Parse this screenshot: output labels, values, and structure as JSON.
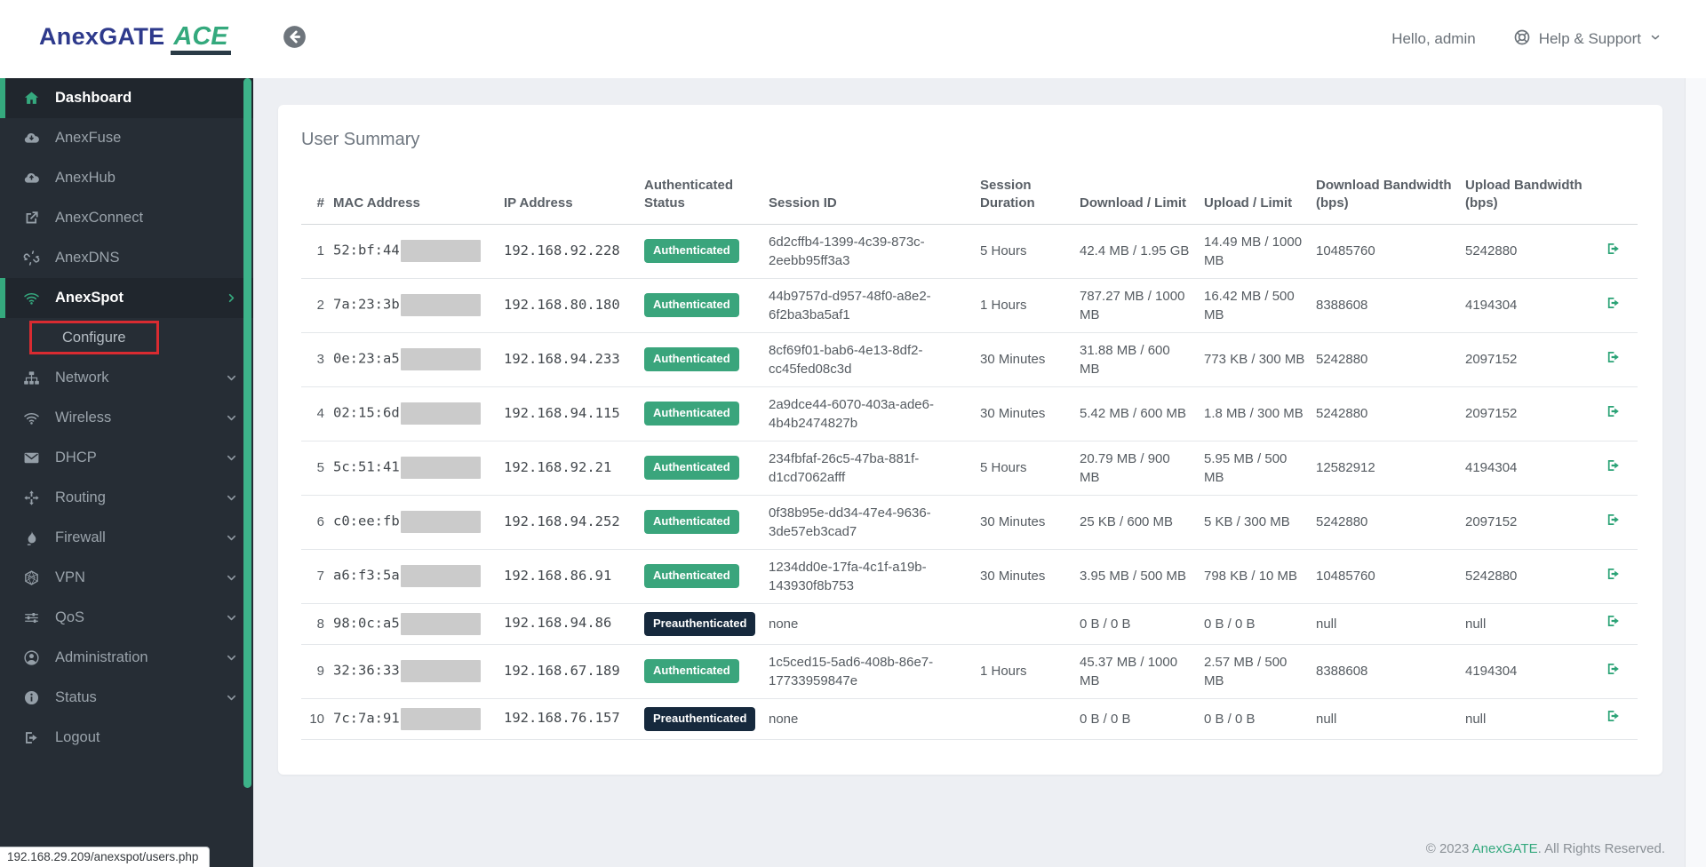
{
  "header": {
    "logo": {
      "brand": "AnexGATE",
      "product": "ACE"
    },
    "greeting": "Hello, admin",
    "help_label": "Help & Support"
  },
  "sidebar": {
    "items": [
      {
        "label": "Dashboard",
        "icon": "home",
        "active": true
      },
      {
        "label": "AnexFuse",
        "icon": "cloud-download"
      },
      {
        "label": "AnexHub",
        "icon": "cloud-upload"
      },
      {
        "label": "AnexConnect",
        "icon": "external-link"
      },
      {
        "label": "AnexDNS",
        "icon": "unlink"
      },
      {
        "label": "AnexSpot",
        "icon": "wifi",
        "active": true,
        "chevron": "right"
      },
      {
        "label": "Configure",
        "sub": true,
        "annotated": true
      },
      {
        "label": "Network",
        "icon": "sitemap",
        "chevron": "down"
      },
      {
        "label": "Wireless",
        "icon": "wifi",
        "chevron": "down"
      },
      {
        "label": "DHCP",
        "icon": "envelope",
        "chevron": "down"
      },
      {
        "label": "Routing",
        "icon": "arrows",
        "chevron": "down"
      },
      {
        "label": "Firewall",
        "icon": "fire",
        "chevron": "down"
      },
      {
        "label": "VPN",
        "icon": "hexagon-globe",
        "chevron": "down"
      },
      {
        "label": "QoS",
        "icon": "sliders",
        "chevron": "down"
      },
      {
        "label": "Administration",
        "icon": "user-circle",
        "chevron": "down"
      },
      {
        "label": "Status",
        "icon": "info-circle",
        "chevron": "down"
      },
      {
        "label": "Logout",
        "icon": "sign-out"
      }
    ]
  },
  "main": {
    "card_title": "User Summary",
    "table": {
      "columns": [
        "#",
        "MAC Address",
        "IP Address",
        "Authenticated Status",
        "Session ID",
        "Session Duration",
        "Download / Limit",
        "Upload / Limit",
        "Download Bandwidth (bps)",
        "Upload Bandwidth (bps)",
        ""
      ],
      "rows": [
        {
          "num": "1",
          "mac_prefix": "52:bf:44",
          "mac_redacted": true,
          "ip": "192.168.92.228",
          "status": "Authenticated",
          "session_id": "6d2cffb4-1399-4c39-873c-2eebb95ff3a3",
          "duration": "5 Hours",
          "download": "42.4 MB / 1.95 GB",
          "upload": "14.49 MB / 1000 MB",
          "download_bw": "10485760",
          "upload_bw": "5242880"
        },
        {
          "num": "2",
          "mac_prefix": "7a:23:3b",
          "mac_redacted": true,
          "ip": "192.168.80.180",
          "status": "Authenticated",
          "session_id": "44b9757d-d957-48f0-a8e2-6f2ba3ba5af1",
          "duration": "1 Hours",
          "download": "787.27 MB / 1000 MB",
          "upload": "16.42 MB / 500 MB",
          "download_bw": "8388608",
          "upload_bw": "4194304"
        },
        {
          "num": "3",
          "mac_prefix": "0e:23:a5",
          "mac_redacted": true,
          "ip": "192.168.94.233",
          "status": "Authenticated",
          "session_id": "8cf69f01-bab6-4e13-8df2-cc45fed08c3d",
          "duration": "30 Minutes",
          "download": "31.88 MB / 600 MB",
          "upload": "773 KB / 300 MB",
          "download_bw": "5242880",
          "upload_bw": "2097152"
        },
        {
          "num": "4",
          "mac_prefix": "02:15:6d",
          "mac_redacted": true,
          "ip": "192.168.94.115",
          "status": "Authenticated",
          "session_id": "2a9dce44-6070-403a-ade6-4b4b2474827b",
          "duration": "30 Minutes",
          "download": "5.42 MB / 600 MB",
          "upload": "1.8 MB / 300 MB",
          "download_bw": "5242880",
          "upload_bw": "2097152"
        },
        {
          "num": "5",
          "mac_prefix": "5c:51:41",
          "mac_redacted": true,
          "ip": "192.168.92.21",
          "status": "Authenticated",
          "session_id": "234fbfaf-26c5-47ba-881f-d1cd7062afff",
          "duration": "5 Hours",
          "download": "20.79 MB / 900 MB",
          "upload": "5.95 MB / 500 MB",
          "download_bw": "12582912",
          "upload_bw": "4194304"
        },
        {
          "num": "6",
          "mac_prefix": "c0:ee:fb",
          "mac_redacted": true,
          "ip": "192.168.94.252",
          "status": "Authenticated",
          "session_id": "0f38b95e-dd34-47e4-9636-3de57eb3cad7",
          "duration": "30 Minutes",
          "download": "25 KB / 600 MB",
          "upload": "5 KB / 300 MB",
          "download_bw": "5242880",
          "upload_bw": "2097152"
        },
        {
          "num": "7",
          "mac_prefix": "a6:f3:5a",
          "mac_redacted": true,
          "ip": "192.168.86.91",
          "status": "Authenticated",
          "session_id": "1234dd0e-17fa-4c1f-a19b-143930f8b753",
          "duration": "30 Minutes",
          "download": "3.95 MB / 500 MB",
          "upload": "798 KB / 10 MB",
          "download_bw": "10485760",
          "upload_bw": "5242880"
        },
        {
          "num": "8",
          "mac_prefix": "98:0c:a5",
          "mac_redacted": true,
          "ip": "192.168.94.86",
          "status": "Preauthenticated",
          "session_id": "none",
          "duration": "",
          "download": "0 B / 0 B",
          "upload": "0 B / 0 B",
          "download_bw": "null",
          "upload_bw": "null"
        },
        {
          "num": "9",
          "mac_prefix": "32:36:33",
          "mac_redacted": true,
          "ip": "192.168.67.189",
          "status": "Authenticated",
          "session_id": "1c5ced15-5ad6-408b-86e7-17733959847e",
          "duration": "1 Hours",
          "download": "45.37 MB / 1000 MB",
          "upload": "2.57 MB / 500 MB",
          "download_bw": "8388608",
          "upload_bw": "4194304"
        },
        {
          "num": "10",
          "mac_prefix": "7c:7a:91",
          "mac_redacted": true,
          "ip": "192.168.76.157",
          "status": "Preauthenticated",
          "session_id": "none",
          "duration": "",
          "download": "0 B / 0 B",
          "upload": "0 B / 0 B",
          "download_bw": "null",
          "upload_bw": "null"
        }
      ]
    }
  },
  "footer": {
    "copyright_prefix": "© 2023 ",
    "brand": "AnexGATE",
    "copyright_suffix": ". All Rights Reserved."
  },
  "statusbar": {
    "url": "192.168.29.209/anexspot/users.php"
  },
  "colors": {
    "accent_green": "#35a97e",
    "badge_authenticated": "#3aa57c",
    "badge_preauthenticated": "#16293d",
    "annotation_red": "#d92b31",
    "logo_navy": "#2e3a8c"
  }
}
